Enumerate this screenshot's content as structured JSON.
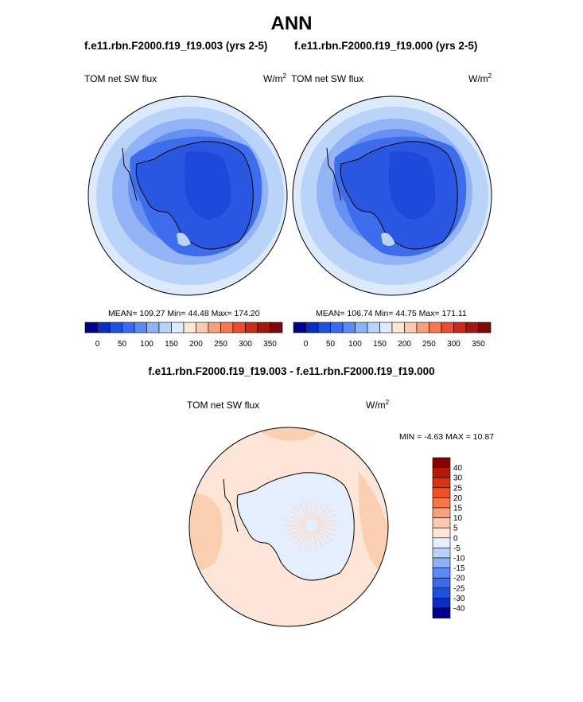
{
  "figure": {
    "title": "ANN",
    "diff_title": "f.e11.rbn.F2000.f19_f19.003 - f.e11.rbn.F2000.f19_f19.000"
  },
  "panels": [
    {
      "case_title": "f.e11.rbn.F2000.f19_f19.003 (yrs 2-5)",
      "variable": "TOM net SW flux",
      "units_base": "W/m",
      "units_exp": "2",
      "stats": "MEAN= 109.27  Min=  44.48  Max= 174.20"
    },
    {
      "case_title": "f.e11.rbn.F2000.f19_f19.000 (yrs 2-5)",
      "variable": "TOM net SW flux",
      "units_base": "W/m",
      "units_exp": "2",
      "stats": "MEAN= 106.74  Min=  44.75  Max= 171.11"
    }
  ],
  "diff_panel": {
    "variable": "TOM net SW flux",
    "units_base": "W/m",
    "units_exp": "2",
    "stats": "MIN =  -4.63 MAX =  10.87"
  },
  "colorbar_horizontal": {
    "colors": [
      "#00008a",
      "#0a2cc0",
      "#1e52dc",
      "#3a6af0",
      "#5b8bf2",
      "#8eb2f6",
      "#b8d2f9",
      "#deeafb",
      "#fde6d7",
      "#fbcaae",
      "#f8a07a",
      "#f4774d",
      "#ea4c2c",
      "#cc2a1a",
      "#a01810",
      "#7a0a0a"
    ],
    "tick_labels": [
      "0",
      "50",
      "100",
      "150",
      "200",
      "250",
      "300",
      "350"
    ]
  },
  "colorbar_vertical": {
    "colors_top_to_bottom": [
      "#8b0000",
      "#b31b08",
      "#d83410",
      "#f05124",
      "#f47846",
      "#f9a27a",
      "#fbcaae",
      "#fde6d7",
      "#e4eefc",
      "#b8d2f9",
      "#8eb2f6",
      "#5b8bf2",
      "#3a6af0",
      "#1e52dc",
      "#0a2cc0",
      "#00008a"
    ],
    "tick_labels": [
      "40",
      "30",
      "25",
      "20",
      "15",
      "10",
      "5",
      "0",
      "-5",
      "-10",
      "-15",
      "-20",
      "-25",
      "-30",
      "-40"
    ]
  },
  "map_colors": {
    "ring_outer": "#ddeafb",
    "ring_2": "#b9d3f9",
    "ring_3": "#92b4f6",
    "ring_4": "#6690f1",
    "ring_5": "#3d6cec",
    "continent": "#2a57e2",
    "interior": "#1f49d8",
    "diff_background": "#fde6d7",
    "diff_patch": "#fbcfb2",
    "diff_land": "#e4eefc"
  }
}
